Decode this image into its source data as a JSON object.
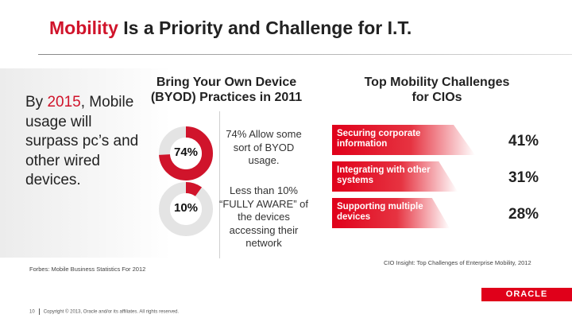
{
  "title": {
    "accent": "Mobility",
    "rest": " Is a Priority and Challenge for I.T."
  },
  "left": {
    "line1_prefix": "By ",
    "line1_accent": "2015",
    "line1_suffix": ",",
    "body": "Mobile usage will surpass pc’s and other wired devices.",
    "source": "Forbes: Mobile Business Statistics For 2012"
  },
  "byod": {
    "title_line1": "Bring Your Own Device",
    "title_line2": "(BYOD) Practices in 2011",
    "pie1_label": "74%",
    "pie1_fraction": 0.74,
    "pie1_note": "74% Allow some sort of BYOD usage.",
    "pie2_label": "10%",
    "pie2_fraction": 0.1,
    "pie2_note": "Less than 10% “FULLY AWARE” of the devices accessing their network"
  },
  "challenges": {
    "title_line1": "Top Mobility Challenges",
    "title_line2": "for CIOs",
    "items": [
      {
        "label": "Securing corporate information",
        "pct": "41%",
        "value": 41
      },
      {
        "label": "Integrating with other systems",
        "pct": "31%",
        "value": 31
      },
      {
        "label": "Supporting multiple devices",
        "pct": "28%",
        "value": 28
      }
    ],
    "source": "CIO Insight: Top Challenges of Enterprise Mobility, 2012"
  },
  "footer": {
    "page": "10",
    "copyright": "Copyright © 2013, Oracle and/or its affiliates. All rights reserved."
  },
  "logo": {
    "text": "ORACLE"
  },
  "colors": {
    "accent": "#d0142b",
    "bar": "#e0001a",
    "pie_fill": "#d0142b",
    "pie_rest": "#e4e4e4"
  }
}
